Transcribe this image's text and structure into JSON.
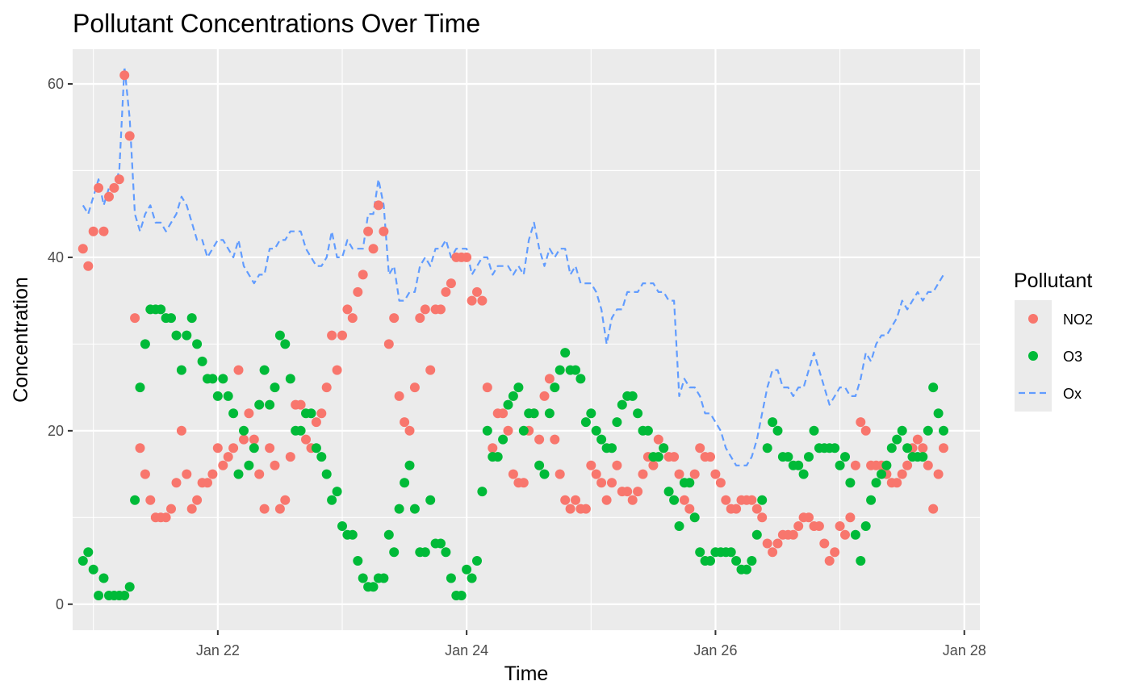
{
  "chart_data": {
    "type": "scatter",
    "title": "Pollutant Concentrations Over Time",
    "xlabel": "Time",
    "ylabel": "Concentration",
    "x_range": [
      "2024-01-20T20:00",
      "2024-01-28T03:00"
    ],
    "x_ticks": [
      {
        "value": "2024-01-22T00:00",
        "label": "Jan 22"
      },
      {
        "value": "2024-01-24T00:00",
        "label": "Jan 24"
      },
      {
        "value": "2024-01-26T00:00",
        "label": "Jan 26"
      },
      {
        "value": "2024-01-28T00:00",
        "label": "Jan 28"
      }
    ],
    "ylim": [
      -3,
      64
    ],
    "y_ticks": [
      0,
      20,
      40,
      60
    ],
    "grid": true,
    "background": "#ebebeb",
    "legend": {
      "title": "Pollutant",
      "position": "right"
    },
    "interval_hours": 1,
    "series": [
      {
        "name": "NO2",
        "geom": "point",
        "color": "#f8766d",
        "start": "2024-01-20T22:00",
        "values": [
          41,
          39,
          43,
          48,
          43,
          47,
          48,
          49,
          61,
          54,
          33,
          18,
          15,
          12,
          10,
          10,
          10,
          11,
          14,
          20,
          15,
          11,
          12,
          14,
          14,
          15,
          18,
          16,
          17,
          18,
          27,
          19,
          22,
          19,
          15,
          11,
          18,
          16,
          11,
          12,
          17,
          23,
          23,
          19,
          18,
          21,
          22,
          25,
          31,
          27,
          31,
          34,
          33,
          36,
          38,
          43,
          41,
          46,
          43,
          30,
          33,
          24,
          21,
          20,
          25,
          33,
          34,
          27,
          34,
          34,
          36,
          37,
          40,
          40,
          40,
          35,
          36,
          35,
          25,
          18,
          22,
          22,
          20,
          15,
          14,
          14,
          20,
          22,
          19,
          24,
          26,
          19,
          15,
          12,
          11,
          12,
          11,
          11,
          16,
          15,
          14,
          12,
          14,
          16,
          13,
          13,
          12,
          13,
          15,
          17,
          16,
          19,
          18,
          17,
          17,
          15,
          12,
          11,
          15,
          18,
          17,
          17,
          15,
          14,
          12,
          11,
          11,
          12,
          12,
          12,
          11,
          10,
          7,
          6,
          7,
          8,
          8,
          8,
          9,
          10,
          10,
          9,
          9,
          7,
          5,
          6,
          9,
          8,
          10,
          16,
          21,
          20,
          16,
          16,
          16,
          15,
          14,
          14,
          15,
          16,
          18,
          19,
          18,
          16,
          11,
          15,
          18
        ]
      },
      {
        "name": "O3",
        "geom": "point",
        "color": "#00ba38",
        "start": "2024-01-20T22:00",
        "values": [
          5,
          6,
          4,
          1,
          3,
          1,
          1,
          1,
          1,
          2,
          12,
          25,
          30,
          34,
          34,
          34,
          33,
          33,
          31,
          27,
          31,
          33,
          30,
          28,
          26,
          26,
          24,
          26,
          24,
          22,
          15,
          20,
          16,
          18,
          23,
          27,
          23,
          25,
          31,
          30,
          26,
          20,
          20,
          22,
          22,
          18,
          17,
          15,
          12,
          13,
          9,
          8,
          8,
          5,
          3,
          2,
          2,
          3,
          3,
          8,
          6,
          11,
          14,
          16,
          11,
          6,
          6,
          12,
          7,
          7,
          6,
          3,
          1,
          1,
          4,
          3,
          5,
          13,
          20,
          17,
          17,
          19,
          23,
          24,
          25,
          20,
          22,
          22,
          16,
          15,
          22,
          25,
          27,
          29,
          27,
          27,
          26,
          21,
          22,
          20,
          19,
          18,
          18,
          21,
          23,
          24,
          24,
          22,
          20,
          20,
          17,
          17,
          18,
          13,
          12,
          9,
          14,
          14,
          10,
          6,
          5,
          5,
          6,
          6,
          6,
          6,
          5,
          4,
          4,
          5,
          8,
          12,
          18,
          21,
          20,
          17,
          17,
          16,
          16,
          15,
          17,
          20,
          18,
          18,
          18,
          18,
          16,
          17,
          14,
          8,
          5,
          9,
          12,
          14,
          15,
          16,
          18,
          19,
          20,
          18,
          17,
          17,
          17,
          20,
          25,
          22,
          20
        ]
      },
      {
        "name": "Ox",
        "geom": "line",
        "color": "#619cff",
        "dash": true,
        "start": "2024-01-20T22:00",
        "values": [
          46,
          45,
          47,
          49,
          46,
          48,
          48,
          50,
          62,
          56,
          45,
          43,
          45,
          46,
          44,
          44,
          43,
          44,
          45,
          47,
          46,
          44,
          42,
          42,
          40,
          41,
          42,
          42,
          41,
          40,
          42,
          39,
          38,
          37,
          38,
          38,
          41,
          41,
          42,
          42,
          43,
          43,
          43,
          41,
          40,
          39,
          39,
          40,
          43,
          40,
          40,
          42,
          41,
          41,
          41,
          45,
          45,
          49,
          46,
          38,
          39,
          35,
          35,
          36,
          36,
          39,
          40,
          39,
          41,
          41,
          42,
          40,
          41,
          41,
          41,
          38,
          39,
          40,
          40,
          38,
          39,
          39,
          39,
          38,
          39,
          38,
          42,
          44,
          41,
          39,
          41,
          40,
          41,
          41,
          38,
          39,
          37,
          37,
          37,
          36,
          34,
          30,
          33,
          34,
          34,
          36,
          36,
          36,
          37,
          37,
          37,
          36,
          36,
          35,
          35,
          24,
          26,
          25,
          25,
          24,
          22,
          22,
          21,
          20,
          18,
          17,
          16,
          16,
          16,
          17,
          19,
          22,
          25,
          27,
          27,
          25,
          25,
          24,
          25,
          25,
          27,
          29,
          27,
          25,
          23,
          24,
          25,
          25,
          24,
          24,
          26,
          29,
          28,
          30,
          31,
          31,
          32,
          33,
          35,
          34,
          35,
          36,
          35,
          36,
          36,
          37,
          38
        ]
      }
    ]
  }
}
